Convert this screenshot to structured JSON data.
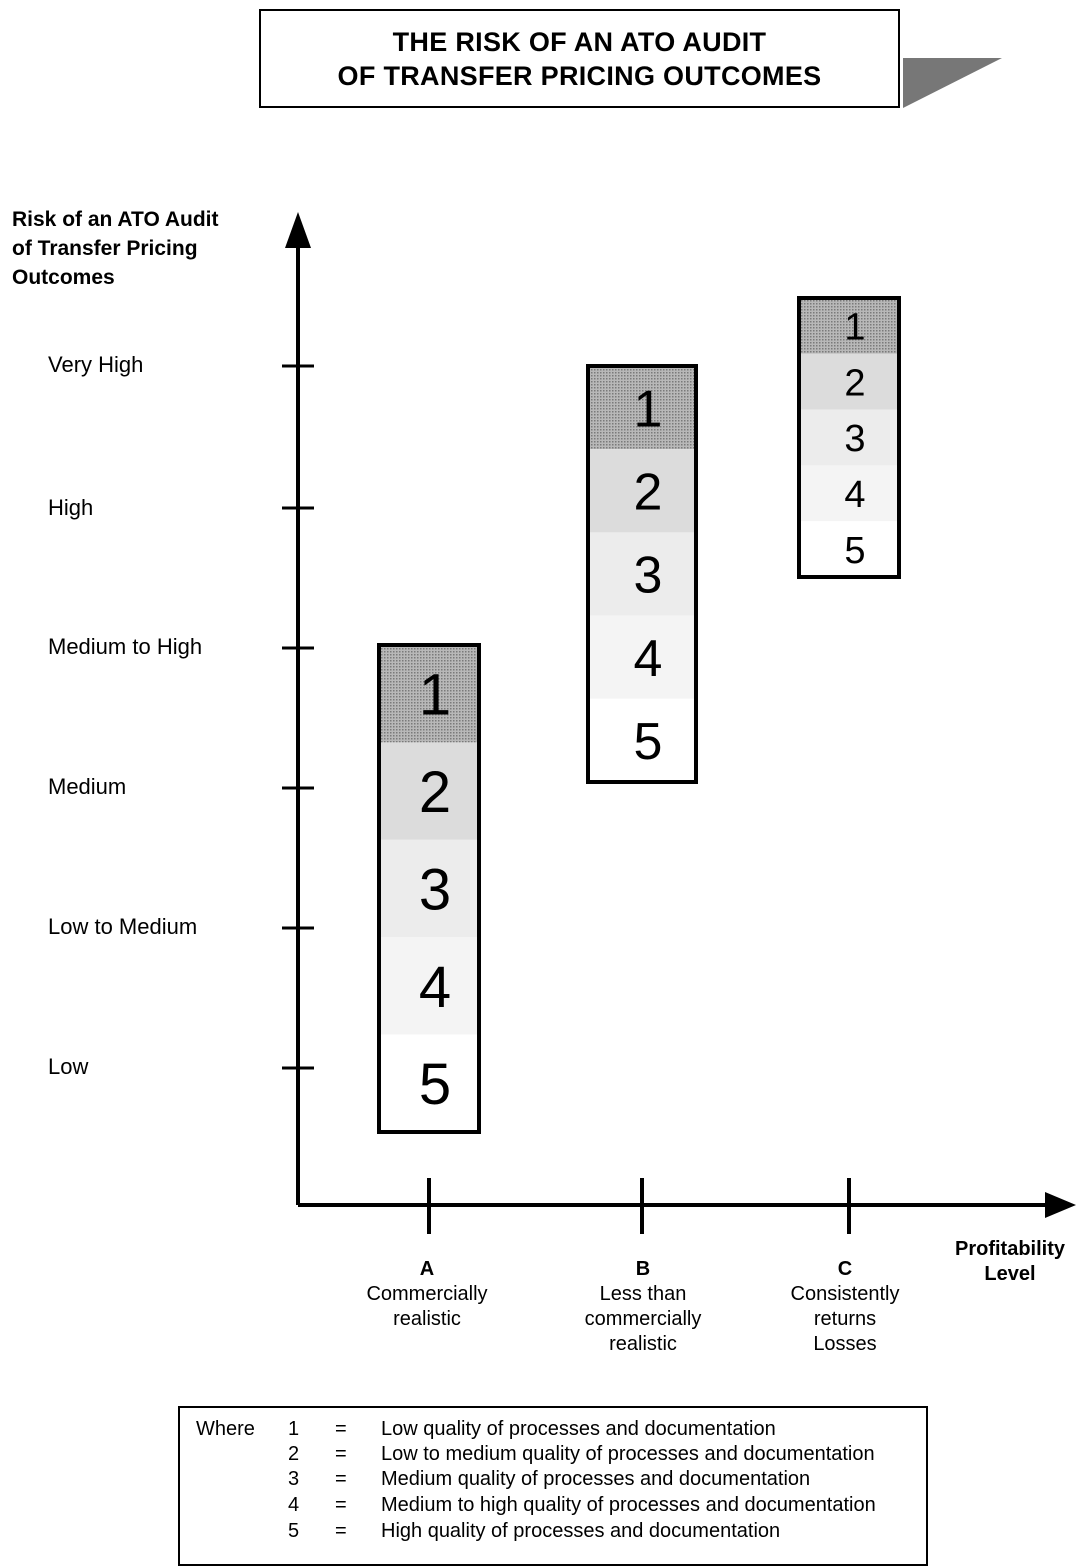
{
  "title": {
    "line1": "THE RISK OF AN ATO AUDIT",
    "line2": "OF TRANSFER PRICING OUTCOMES"
  },
  "y_axis": {
    "title_lines": [
      "Risk of an ATO Audit",
      "of Transfer Pricing",
      "Outcomes"
    ],
    "levels": [
      "Very High",
      "High",
      "Medium to High",
      "Medium",
      "Low to Medium",
      "Low"
    ]
  },
  "x_axis": {
    "title_lines": [
      "Profitability",
      "Level"
    ],
    "categories": [
      {
        "letter": "A",
        "description": [
          "Commercially",
          "realistic"
        ]
      },
      {
        "letter": "B",
        "description": [
          "Less than",
          "commercially",
          "realistic"
        ]
      },
      {
        "letter": "C",
        "description": [
          "Consistently",
          "returns",
          "Losses"
        ]
      }
    ]
  },
  "columns": [
    {
      "category": "A",
      "risk_top": "Medium to High",
      "risk_bottom": "Low",
      "labels": [
        "1",
        "2",
        "3",
        "4",
        "5"
      ]
    },
    {
      "category": "B",
      "risk_top": "Very High",
      "risk_bottom": "Medium",
      "labels": [
        "1",
        "2",
        "3",
        "4",
        "5"
      ]
    },
    {
      "category": "C",
      "risk_top": "Very High",
      "risk_bottom": "High",
      "labels": [
        "1",
        "2",
        "3",
        "4",
        "5"
      ]
    }
  ],
  "shading": [
    "#9a9a9a",
    "#dcdcdc",
    "#ececec",
    "#f4f4f4",
    "#ffffff"
  ],
  "legend": {
    "where": "Where",
    "rows": [
      {
        "num": "1",
        "eq": "=",
        "text": "Low quality of processes and documentation"
      },
      {
        "num": "2",
        "eq": "=",
        "text": "Low to medium quality of processes and documentation"
      },
      {
        "num": "3",
        "eq": "=",
        "text": "Medium quality of processes and documentation"
      },
      {
        "num": "4",
        "eq": "=",
        "text": "Medium to high quality of processes and documentation"
      },
      {
        "num": "5",
        "eq": "=",
        "text": "High quality of processes and documentation"
      }
    ]
  }
}
